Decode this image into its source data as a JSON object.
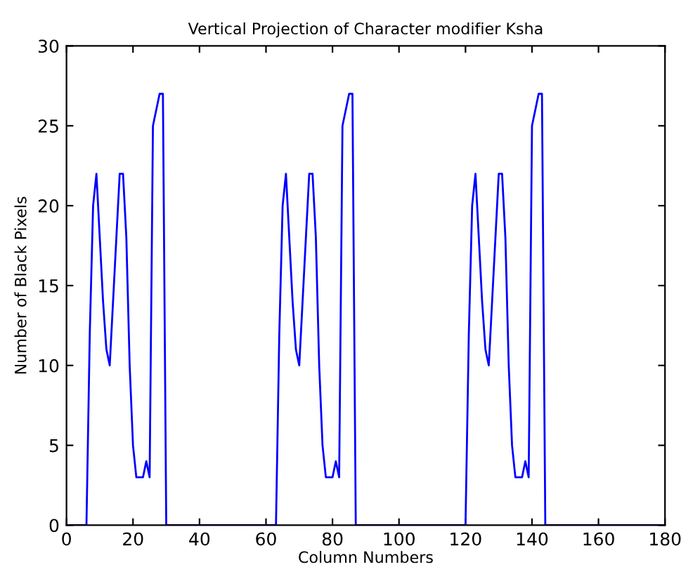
{
  "chart_data": {
    "type": "line",
    "title": "Vertical Projection of Character modifier Ksha",
    "xlabel": "Column Numbers",
    "ylabel": "Number of Black Pixels",
    "series": [
      {
        "color": "#0000ff",
        "x": [
          0,
          6,
          7,
          8,
          9,
          10,
          11,
          12,
          13,
          14,
          15,
          16,
          17,
          18,
          19,
          20,
          21,
          22,
          23,
          24,
          25,
          26,
          27,
          28,
          29,
          30,
          63,
          64,
          65,
          66,
          67,
          68,
          69,
          70,
          71,
          72,
          73,
          74,
          75,
          76,
          77,
          78,
          79,
          80,
          81,
          82,
          83,
          84,
          85,
          86,
          87,
          120,
          121,
          122,
          123,
          124,
          125,
          126,
          127,
          128,
          129,
          130,
          131,
          132,
          133,
          134,
          135,
          136,
          137,
          138,
          139,
          140,
          141,
          142,
          143,
          144,
          180
        ],
        "values": [
          0,
          0,
          12,
          20,
          22,
          18,
          14,
          11,
          10,
          14,
          18,
          22,
          22,
          18,
          10,
          5,
          3,
          3,
          3,
          4,
          3,
          25,
          26,
          27,
          27,
          0,
          0,
          12,
          20,
          22,
          18,
          14,
          11,
          10,
          14,
          18,
          22,
          22,
          18,
          10,
          5,
          3,
          3,
          3,
          4,
          3,
          25,
          26,
          27,
          27,
          0,
          0,
          12,
          20,
          22,
          18,
          14,
          11,
          10,
          14,
          18,
          22,
          22,
          18,
          10,
          5,
          3,
          3,
          3,
          4,
          3,
          25,
          26,
          27,
          27,
          0,
          0
        ]
      }
    ],
    "xlim": [
      0,
      180
    ],
    "ylim": [
      0,
      30
    ],
    "xticks": [
      0,
      20,
      40,
      60,
      80,
      100,
      120,
      140,
      160,
      180
    ],
    "yticks": [
      0,
      5,
      10,
      15,
      20,
      25,
      30
    ],
    "grid": false,
    "legend": false,
    "marker": "none",
    "line_style": "solid"
  }
}
